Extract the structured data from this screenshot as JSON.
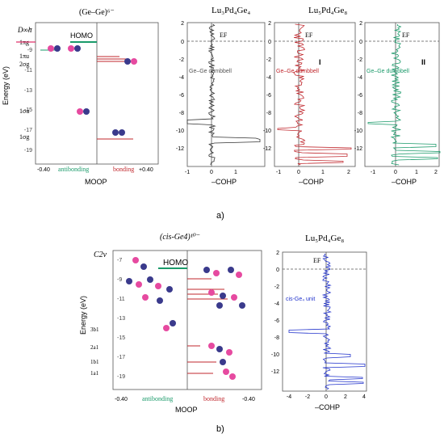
{
  "figure": {
    "panel_a": {
      "label": "a)",
      "moop": {
        "title_html": "(Ge–Ge)⁶⁻",
        "y_axis_label": "Energy (eV)",
        "y_ticks": [
          "-7",
          "-9",
          "-11",
          "-13",
          "-15",
          "-17",
          "-19"
        ],
        "x_ticks": [
          "-0.40",
          "+0.40"
        ],
        "x_label": "MOOP",
        "antibonding": "antibonding",
        "bonding": "bonding",
        "homo": "HOMO",
        "group_label": "D∞h",
        "orbitals": [
          "1πg",
          "1πu",
          "2σg",
          "1σu",
          "1σg"
        ]
      },
      "cohp_panels": [
        {
          "title": "Lu₃Pd₄Ge₄",
          "legend": "Ge–Ge dumbbell",
          "ef": "EF",
          "marker": "",
          "color": "#333333",
          "y_ticks": [
            "2",
            "0",
            "-2",
            "-4",
            "-6",
            "-8",
            "-10",
            "-12"
          ],
          "x_ticks": [
            "-1",
            "0",
            "1"
          ],
          "x_label": "–COHP"
        },
        {
          "title": "Lu₅Pd₄Ge₈",
          "legend": "Ge–Ge dumbbell",
          "ef": "EF",
          "marker": "I",
          "color": "#c0272d",
          "y_ticks": [
            "2",
            "0",
            "-2",
            "-4",
            "-6",
            "-8",
            "-10",
            "-12"
          ],
          "x_ticks": [
            "-1",
            "0",
            "1",
            "2"
          ],
          "x_label": "–COHP"
        },
        {
          "title": "Lu₅Pd₄Ge₈",
          "legend": "Ge–Ge dumbbell",
          "ef": "EF",
          "marker": "II",
          "color": "#1a9a6a",
          "y_ticks": [
            "2",
            "0",
            "-2",
            "-4",
            "-6",
            "-8",
            "-10",
            "-12"
          ],
          "x_ticks": [
            "-1",
            "0",
            "1",
            "2"
          ],
          "x_label": "–COHP"
        }
      ]
    },
    "panel_b": {
      "label": "b)",
      "moop": {
        "title_html": "(cis-Ge4)¹⁰⁻",
        "group_label": "C2v",
        "y_axis_label": "Energy (eV)",
        "y_ticks": [
          "-7",
          "-9",
          "-11",
          "-13",
          "-15",
          "-17",
          "-19"
        ],
        "x_ticks": [
          "-0.40",
          "-0.40"
        ],
        "x_label": "MOOP",
        "antibonding": "antibonding",
        "bonding": "bonding",
        "homo": "HOMO",
        "orbitals": [
          "3b1",
          "2a1",
          "1b1",
          "1a1"
        ]
      },
      "cohp": {
        "title": "Lu₅Pd₄Ge₈",
        "legend": "cis-Ge₄ unit",
        "ef": "EF",
        "color": "#2233cc",
        "y_ticks": [
          "2",
          "0",
          "-2",
          "-4",
          "-6",
          "-8",
          "-10",
          "-12"
        ],
        "x_ticks": [
          "-4",
          "-2",
          "0",
          "2",
          "4"
        ],
        "x_label": "–COHP"
      }
    }
  }
}
